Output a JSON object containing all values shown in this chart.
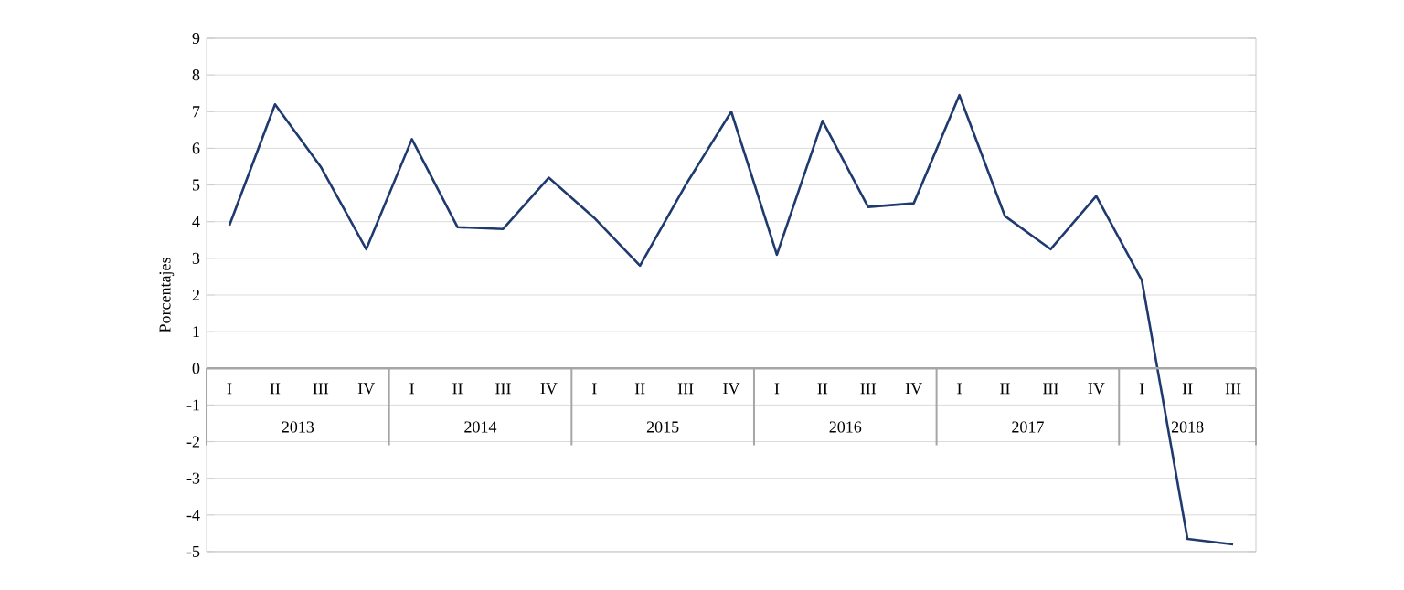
{
  "chart_data": {
    "type": "line",
    "ylabel": "Porcentajes",
    "categories": [
      "I",
      "II",
      "III",
      "IV",
      "I",
      "II",
      "III",
      "IV",
      "I",
      "II",
      "III",
      "IV",
      "I",
      "II",
      "III",
      "IV",
      "I",
      "II",
      "III",
      "IV",
      "I",
      "II",
      "III"
    ],
    "series": [
      {
        "color": "#1f3a6e",
        "values": [
          3.9,
          7.2,
          5.5,
          3.25,
          6.25,
          3.85,
          3.8,
          5.2,
          4.1,
          2.8,
          5.0,
          7.0,
          3.1,
          6.75,
          4.4,
          4.5,
          7.45,
          4.15,
          3.25,
          4.7,
          2.4,
          -4.65,
          -4.8
        ]
      }
    ],
    "annotations": [
      "2013",
      "2014",
      "2015",
      "2016",
      "2017",
      "2018"
    ],
    "ylim": [
      -5,
      9
    ],
    "yticks": [
      -5,
      -4,
      -3,
      -2,
      -1,
      0,
      1,
      2,
      3,
      4,
      5,
      6,
      7,
      8,
      9
    ],
    "grid": true,
    "marker": "none",
    "line_style": "solid"
  }
}
